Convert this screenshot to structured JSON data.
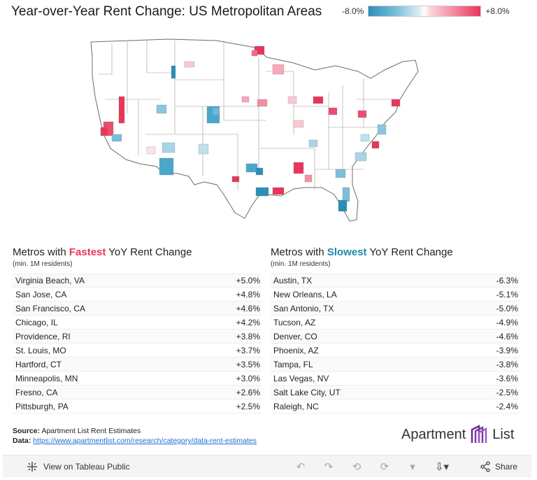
{
  "title": "Year-over-Year Rent Change: US Metropolitan Areas",
  "legend": {
    "min_label": "-8.0%",
    "max_label": "+8.0%",
    "low_color": "#2a8fb8",
    "high_color": "#e8365a"
  },
  "map": {
    "label": "US metro rent change choropleth"
  },
  "fastest": {
    "heading_pre": "Metros with ",
    "heading_hl": "Fastest",
    "heading_post": " YoY Rent Change",
    "hl_color": "#e8365a",
    "sub": "(min. 1M residents)",
    "rows": [
      {
        "metro": "Virginia Beach, VA",
        "value": "+5.0%"
      },
      {
        "metro": "San Jose, CA",
        "value": "+4.8%"
      },
      {
        "metro": "San Francisco, CA",
        "value": "+4.6%"
      },
      {
        "metro": "Chicago, IL",
        "value": "+4.2%"
      },
      {
        "metro": "Providence, RI",
        "value": "+3.8%"
      },
      {
        "metro": "St. Louis, MO",
        "value": "+3.7%"
      },
      {
        "metro": "Hartford, CT",
        "value": "+3.5%"
      },
      {
        "metro": "Minneapolis, MN",
        "value": "+3.0%"
      },
      {
        "metro": "Fresno, CA",
        "value": "+2.6%"
      },
      {
        "metro": "Pittsburgh, PA",
        "value": "+2.5%"
      }
    ]
  },
  "slowest": {
    "heading_pre": "Metros with ",
    "heading_hl": "Slowest",
    "heading_post": " YoY Rent Change",
    "hl_color": "#1f86b0",
    "sub": "(min. 1M residents)",
    "rows": [
      {
        "metro": "Austin, TX",
        "value": "-6.3%"
      },
      {
        "metro": "New Orleans, LA",
        "value": "-5.1%"
      },
      {
        "metro": "San Antonio, TX",
        "value": "-5.0%"
      },
      {
        "metro": "Tucson, AZ",
        "value": "-4.9%"
      },
      {
        "metro": "Denver, CO",
        "value": "-4.6%"
      },
      {
        "metro": "Phoenix, AZ",
        "value": "-3.9%"
      },
      {
        "metro": "Tampa, FL",
        "value": "-3.8%"
      },
      {
        "metro": "Las Vegas, NV",
        "value": "-3.6%"
      },
      {
        "metro": "Salt Lake City, UT",
        "value": "-2.5%"
      },
      {
        "metro": "Raleigh, NC",
        "value": "-2.4%"
      }
    ]
  },
  "source": {
    "source_label": "Source:",
    "source_text": "Apartment List Rent Estimates",
    "data_label": "Data:",
    "data_link": "https://www.apartmentlist.com/research/category/data-rent-estimates"
  },
  "brand": {
    "left": "Apartment",
    "right": "List"
  },
  "toolbar": {
    "view_label": "View on Tableau Public",
    "share_label": "Share"
  }
}
